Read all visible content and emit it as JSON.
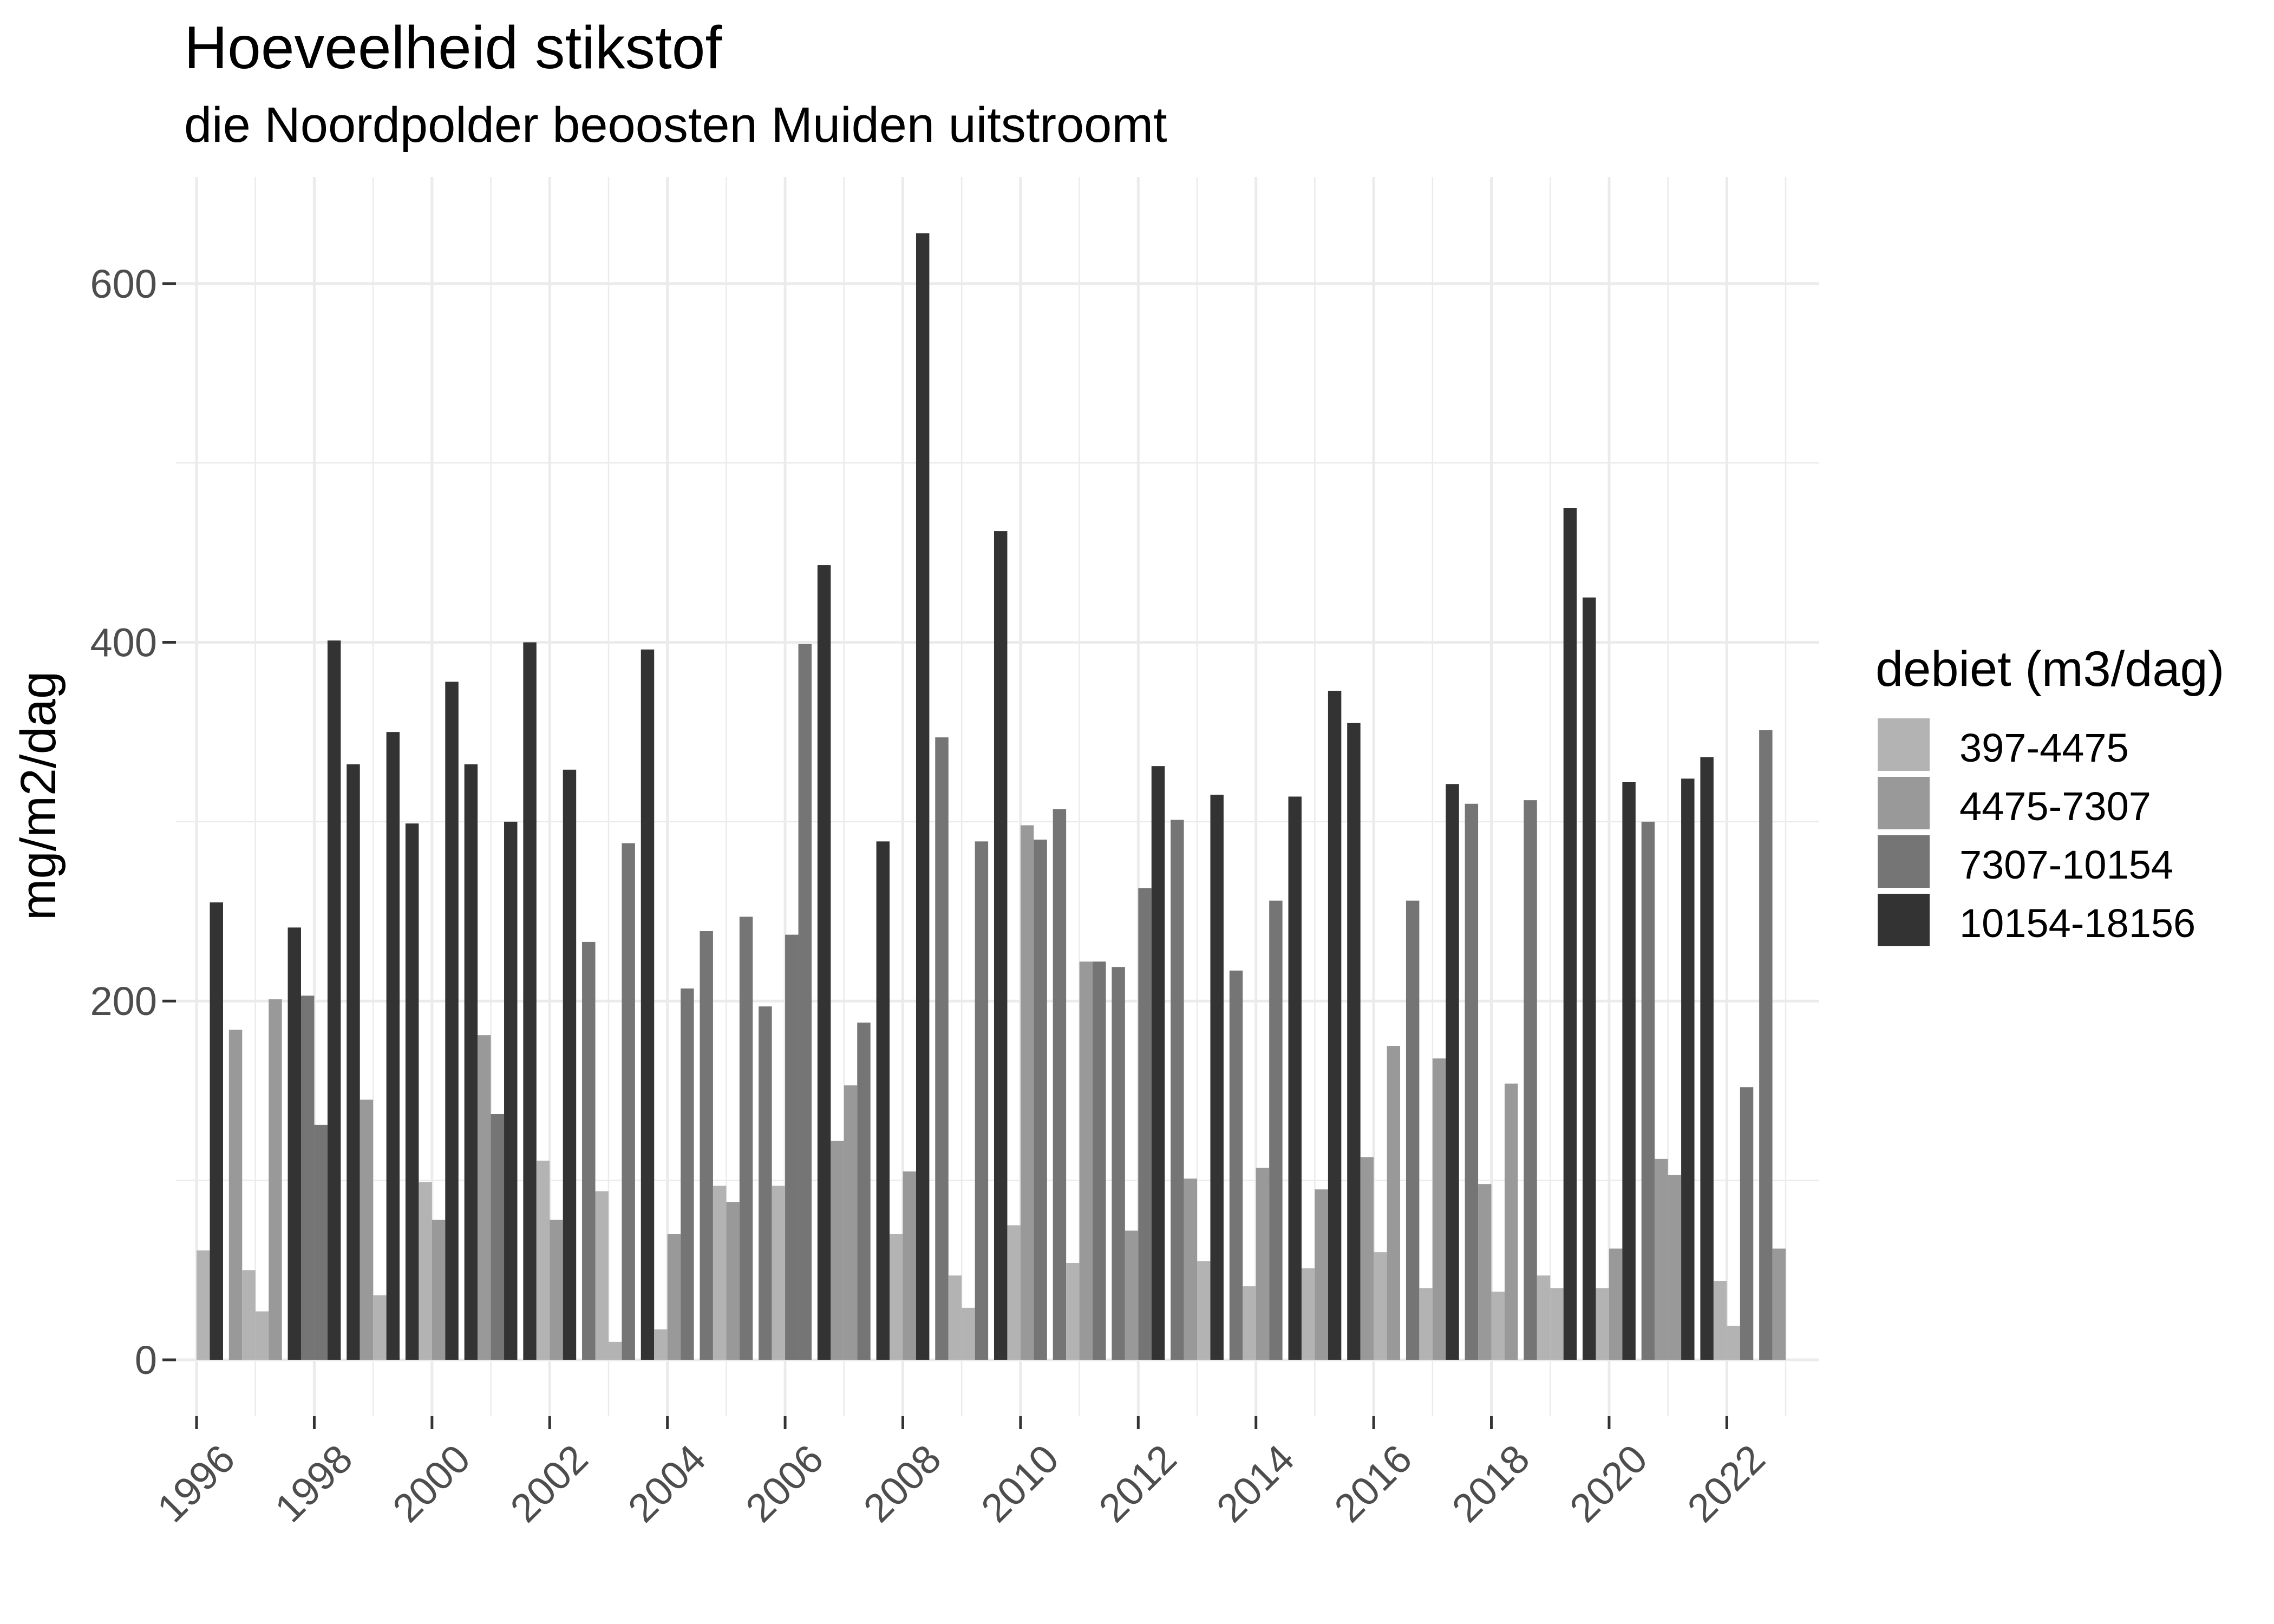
{
  "chart_data": {
    "type": "bar",
    "title": "Hoeveelheid stikstof",
    "subtitle": "die Noordpolder beoosten Muiden uitstroomt",
    "xlabel": "",
    "ylabel": "mg/m2/dag",
    "ylim": [
      -31.4,
      659.4
    ],
    "xlim": [
      1995.65,
      2023.57
    ],
    "yticks": [
      0,
      200,
      400,
      600
    ],
    "xticks": [
      1996,
      1998,
      2000,
      2002,
      2004,
      2006,
      2008,
      2010,
      2012,
      2014,
      2016,
      2018,
      2020,
      2022
    ],
    "grid": true,
    "bars_per_year": 4,
    "legend": {
      "title": "debiet (m3/dag)",
      "placement": "right",
      "classes": [
        {
          "label": "397-4475",
          "color": "#b3b3b3"
        },
        {
          "label": "4475-7307",
          "color": "#999999"
        },
        {
          "label": "7307-10154",
          "color": "#757575"
        },
        {
          "label": "10154-18156",
          "color": "#333333"
        }
      ]
    },
    "columns": [
      "year",
      "slot",
      "value",
      "class"
    ],
    "data": [
      [
        1996,
        3,
        61,
        0
      ],
      [
        1996,
        4,
        255,
        3
      ],
      [
        1997,
        1,
        184,
        1
      ],
      [
        1997,
        2,
        50,
        0
      ],
      [
        1997,
        3,
        27,
        0
      ],
      [
        1997,
        4,
        201,
        1
      ],
      [
        1998,
        1,
        241,
        3
      ],
      [
        1998,
        2,
        203,
        2
      ],
      [
        1998,
        3,
        131,
        2
      ],
      [
        1998,
        4,
        401,
        3
      ],
      [
        1999,
        1,
        332,
        3
      ],
      [
        1999,
        2,
        145,
        1
      ],
      [
        1999,
        3,
        36,
        0
      ],
      [
        1999,
        4,
        350,
        3
      ],
      [
        2000,
        1,
        299,
        3
      ],
      [
        2000,
        2,
        99,
        0
      ],
      [
        2000,
        3,
        78,
        1
      ],
      [
        2000,
        4,
        378,
        3
      ],
      [
        2001,
        1,
        332,
        3
      ],
      [
        2001,
        2,
        181,
        1
      ],
      [
        2001,
        3,
        137,
        2
      ],
      [
        2001,
        4,
        300,
        3
      ],
      [
        2002,
        1,
        400,
        3
      ],
      [
        2002,
        2,
        111,
        0
      ],
      [
        2002,
        3,
        78,
        1
      ],
      [
        2002,
        4,
        329,
        3
      ],
      [
        2003,
        1,
        233,
        2
      ],
      [
        2003,
        2,
        94,
        0
      ],
      [
        2003,
        3,
        10,
        0
      ],
      [
        2003,
        4,
        288,
        2
      ],
      [
        2004,
        1,
        396,
        3
      ],
      [
        2004,
        2,
        17,
        0
      ],
      [
        2004,
        3,
        70,
        1
      ],
      [
        2004,
        4,
        207,
        2
      ],
      [
        2005,
        1,
        239,
        2
      ],
      [
        2005,
        2,
        97,
        0
      ],
      [
        2005,
        3,
        88,
        1
      ],
      [
        2005,
        4,
        247,
        2
      ],
      [
        2006,
        1,
        197,
        2
      ],
      [
        2006,
        2,
        97,
        0
      ],
      [
        2006,
        3,
        237,
        2
      ],
      [
        2006,
        4,
        399,
        2
      ],
      [
        2007,
        1,
        443,
        3
      ],
      [
        2007,
        2,
        122,
        1
      ],
      [
        2007,
        3,
        153,
        1
      ],
      [
        2007,
        4,
        188,
        2
      ],
      [
        2008,
        1,
        289,
        3
      ],
      [
        2008,
        2,
        70,
        0
      ],
      [
        2008,
        3,
        105,
        1
      ],
      [
        2008,
        4,
        628,
        3
      ],
      [
        2009,
        1,
        347,
        2
      ],
      [
        2009,
        2,
        47,
        0
      ],
      [
        2009,
        3,
        29,
        0
      ],
      [
        2009,
        4,
        289,
        2
      ],
      [
        2010,
        1,
        462,
        3
      ],
      [
        2010,
        2,
        75,
        0
      ],
      [
        2010,
        3,
        298,
        1
      ],
      [
        2010,
        4,
        290,
        2
      ],
      [
        2011,
        1,
        307,
        2
      ],
      [
        2011,
        2,
        54,
        0
      ],
      [
        2011,
        3,
        222,
        1
      ],
      [
        2011,
        4,
        222,
        2
      ],
      [
        2012,
        1,
        219,
        2
      ],
      [
        2012,
        2,
        72,
        1
      ],
      [
        2012,
        3,
        263,
        2
      ],
      [
        2012,
        4,
        331,
        3
      ],
      [
        2013,
        1,
        301,
        2
      ],
      [
        2013,
        2,
        101,
        1
      ],
      [
        2013,
        3,
        55,
        0
      ],
      [
        2013,
        4,
        315,
        3
      ],
      [
        2014,
        1,
        217,
        2
      ],
      [
        2014,
        2,
        41,
        0
      ],
      [
        2014,
        3,
        107,
        1
      ],
      [
        2014,
        4,
        256,
        2
      ],
      [
        2015,
        1,
        314,
        3
      ],
      [
        2015,
        2,
        51,
        0
      ],
      [
        2015,
        3,
        95,
        1
      ],
      [
        2015,
        4,
        373,
        3
      ],
      [
        2016,
        1,
        355,
        3
      ],
      [
        2016,
        2,
        113,
        1
      ],
      [
        2016,
        3,
        60,
        0
      ],
      [
        2016,
        4,
        175,
        1
      ],
      [
        2017,
        1,
        256,
        2
      ],
      [
        2017,
        2,
        40,
        0
      ],
      [
        2017,
        3,
        168,
        1
      ],
      [
        2017,
        4,
        321,
        3
      ],
      [
        2018,
        1,
        310,
        2
      ],
      [
        2018,
        2,
        98,
        1
      ],
      [
        2018,
        3,
        38,
        0
      ],
      [
        2018,
        4,
        154,
        1
      ],
      [
        2019,
        1,
        312,
        2
      ],
      [
        2019,
        2,
        47,
        0
      ],
      [
        2019,
        3,
        40,
        0
      ],
      [
        2019,
        4,
        475,
        3
      ],
      [
        2020,
        1,
        425,
        3
      ],
      [
        2020,
        2,
        40,
        0
      ],
      [
        2020,
        3,
        62,
        1
      ],
      [
        2020,
        4,
        322,
        3
      ],
      [
        2021,
        1,
        300,
        2
      ],
      [
        2021,
        2,
        112,
        1
      ],
      [
        2021,
        3,
        103,
        1
      ],
      [
        2021,
        4,
        324,
        3
      ],
      [
        2022,
        1,
        336,
        3
      ],
      [
        2022,
        2,
        44,
        0
      ],
      [
        2022,
        3,
        19,
        0
      ],
      [
        2022,
        4,
        152,
        2
      ],
      [
        2023,
        1,
        351,
        2
      ],
      [
        2023,
        2,
        62,
        1
      ]
    ]
  }
}
